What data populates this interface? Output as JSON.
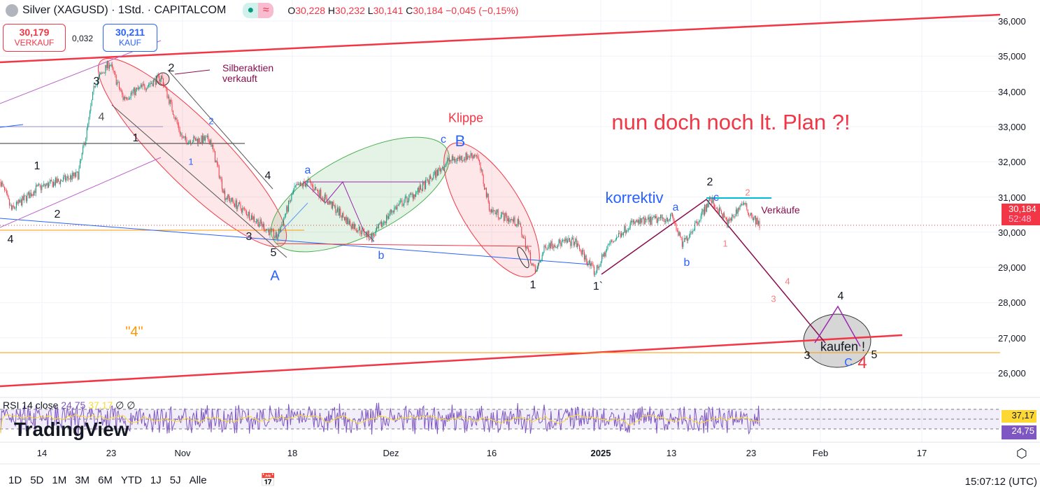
{
  "header": {
    "title": "Silver (XAGUSD) · 1Std. · CAPITALCOM",
    "open_label": "O",
    "open": "30,228",
    "high_label": "H",
    "high": "30,232",
    "low_label": "L",
    "low": "30,141",
    "close_label": "C",
    "close": "30,184",
    "change": "−0,045 (−0,15%)"
  },
  "trade": {
    "sell_price": "30,179",
    "sell_label": "VERKAUF",
    "spread": "0,032",
    "buy_price": "30,211",
    "buy_label": "KAUF"
  },
  "price_axis": [
    "36,000",
    "35,000",
    "34,000",
    "33,000",
    "32,000",
    "31,000",
    "30,000",
    "29,000",
    "28,000",
    "27,000",
    "26,000"
  ],
  "current": {
    "price": "30,184",
    "countdown": "52:48"
  },
  "rsi": {
    "label": "RSI 14 close",
    "value": "24,75",
    "ma": "37,17",
    "na1": "∅",
    "na2": "∅"
  },
  "watermark": "TradingView",
  "time_axis": [
    "14",
    "23",
    "Nov",
    "18",
    "Dez",
    "16",
    "2025",
    "13",
    "23",
    "Feb",
    "17"
  ],
  "annotations": {
    "silber": "Silberaktien",
    "verkauft": "verkauft",
    "klippe": "Klippe",
    "plan": "nun doch noch lt. Plan ?!",
    "korrektiv": "korrektiv",
    "verkaeufe": "Verkäufe",
    "kaufen": "kaufen !",
    "four_q": "\"4\""
  },
  "waves": [
    "3",
    "4",
    "1",
    "2",
    "1",
    "2",
    "4",
    "4",
    "3",
    "5",
    "1",
    "1`",
    "2",
    "4",
    "3",
    "5",
    "A",
    "a",
    "b",
    "c",
    "B",
    "a",
    "b",
    "c",
    "C",
    "2",
    "1",
    "4",
    "2",
    "1",
    "4",
    "3"
  ],
  "ranges": [
    "1D",
    "5D",
    "1M",
    "3M",
    "6M",
    "YTD",
    "1J",
    "5J",
    "Alle"
  ],
  "clock": "15:07:12 (UTC)",
  "colors": {
    "up": "#089981",
    "down": "#f23645",
    "rsi": "#7e57c2",
    "rsi_ma": "#fdd835",
    "accent_blue": "#2962ff"
  },
  "chart_data": {
    "type": "candlestick",
    "symbol": "XAGUSD",
    "interval": "1h",
    "ylim": [
      25500,
      36300
    ],
    "path": [
      [
        0,
        31430
      ],
      [
        11,
        30630
      ],
      [
        36,
        31230
      ],
      [
        79,
        31630
      ],
      [
        89,
        33020
      ],
      [
        96,
        34210
      ],
      [
        111,
        34810
      ],
      [
        125,
        33810
      ],
      [
        164,
        34410
      ],
      [
        186,
        32620
      ],
      [
        214,
        32620
      ],
      [
        229,
        31030
      ],
      [
        257,
        30430
      ],
      [
        282,
        29840
      ],
      [
        300,
        31230
      ],
      [
        314,
        31430
      ],
      [
        357,
        30240
      ],
      [
        379,
        29840
      ],
      [
        400,
        30630
      ],
      [
        429,
        31230
      ],
      [
        457,
        32020
      ],
      [
        486,
        32220
      ],
      [
        500,
        30630
      ],
      [
        529,
        30240
      ],
      [
        546,
        28840
      ],
      [
        557,
        29640
      ],
      [
        586,
        29740
      ],
      [
        607,
        28840
      ],
      [
        621,
        29640
      ],
      [
        643,
        30240
      ],
      [
        686,
        30430
      ],
      [
        696,
        29640
      ],
      [
        714,
        30430
      ],
      [
        725,
        30930
      ],
      [
        743,
        30240
      ],
      [
        757,
        30830
      ],
      [
        775,
        30190
      ]
    ]
  }
}
